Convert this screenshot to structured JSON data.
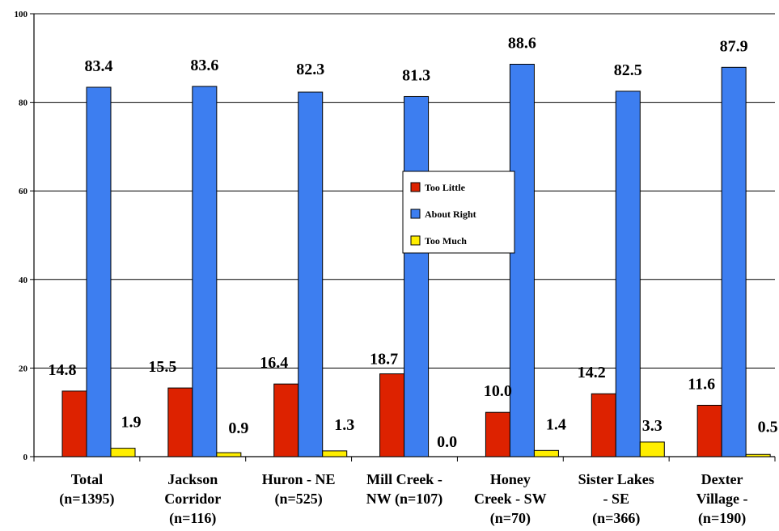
{
  "chart_data": {
    "type": "bar",
    "ylim": [
      0,
      100
    ],
    "yticks": [
      0,
      20,
      40,
      60,
      80,
      100
    ],
    "grid": true,
    "legend_position": "center",
    "categories": [
      [
        "Total",
        "(n=1395)"
      ],
      [
        "Jackson",
        "Corridor",
        "(n=116)"
      ],
      [
        "Huron - NE",
        "(n=525)"
      ],
      [
        "Mill Creek -",
        "NW (n=107)"
      ],
      [
        "Honey",
        "Creek - SW",
        "(n=70)"
      ],
      [
        "Sister Lakes",
        "- SE",
        "(n=366)"
      ],
      [
        "Dexter",
        "Village -",
        "(n=190)"
      ]
    ],
    "series": [
      {
        "name": "Too Little",
        "color": "#dd2200",
        "values": [
          14.8,
          15.5,
          16.4,
          18.7,
          10.0,
          14.2,
          11.6
        ],
        "labels": [
          "14.8",
          "15.5",
          "16.4",
          "18.7",
          "10.0",
          "14.2",
          "11.6"
        ]
      },
      {
        "name": "About Right",
        "color": "#3d7ef0",
        "values": [
          83.4,
          83.6,
          82.3,
          81.3,
          88.6,
          82.5,
          87.9
        ],
        "labels": [
          "83.4",
          "83.6",
          "82.3",
          "81.3",
          "88.6",
          "82.5",
          "87.9"
        ]
      },
      {
        "name": "Too Much",
        "color": "#ffee00",
        "values": [
          1.9,
          0.9,
          1.3,
          0.0,
          1.4,
          3.3,
          0.5
        ],
        "labels": [
          "1.9",
          "0.9",
          "1.3",
          "0.0",
          "1.4",
          "3.3",
          "0.5"
        ]
      }
    ]
  }
}
